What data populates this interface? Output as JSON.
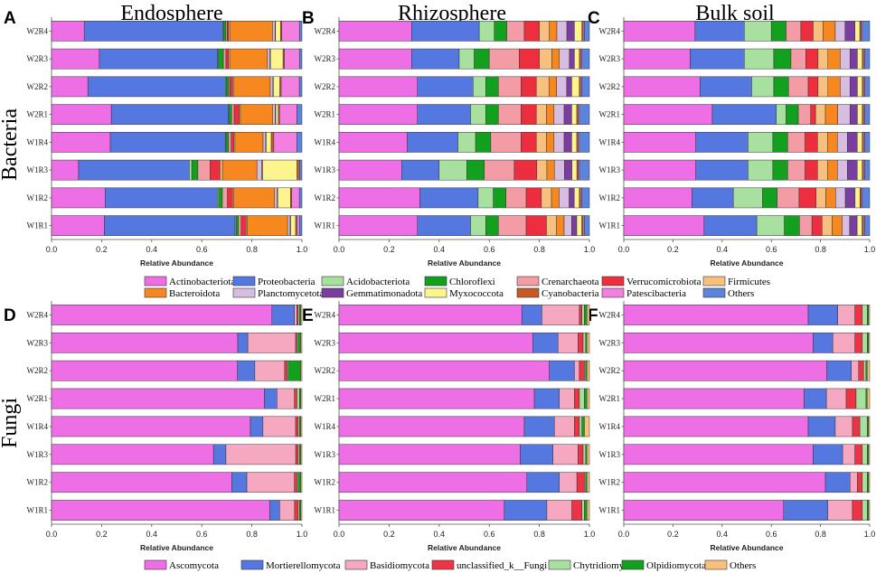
{
  "row_titles": {
    "bacteria": "Bacteria",
    "fungi": "Fungi"
  },
  "column_titles": [
    "Endosphere",
    "Rhizosphere",
    "Bulk soil"
  ],
  "xlabel": "Relative Abundance",
  "x_ticks": [
    "0.0",
    "0.2",
    "0.4",
    "0.6",
    "0.8",
    "1.0"
  ],
  "samples": [
    "W2R4",
    "W2R3",
    "W2R2",
    "W2R1",
    "W1R4",
    "W1R3",
    "W1R2",
    "W1R1"
  ],
  "bacteria_legend": [
    {
      "name": "Actinobacteriota",
      "color": "#EE6EE6"
    },
    {
      "name": "Proteobacteria",
      "color": "#5577E0"
    },
    {
      "name": "Acidobacteriota",
      "color": "#A8E0A0"
    },
    {
      "name": "Chloroflexi",
      "color": "#13A01F"
    },
    {
      "name": "Crenarchaeota",
      "color": "#F39CA6"
    },
    {
      "name": "Verrucomicrobiota",
      "color": "#EC2E3F"
    },
    {
      "name": "Firmicutes",
      "color": "#F7C07E"
    },
    {
      "name": "Bacteroidota",
      "color": "#F7881F"
    },
    {
      "name": "Planctomycetota",
      "color": "#D7BDE2"
    },
    {
      "name": "Gemmatimonadota",
      "color": "#7A3DA0"
    },
    {
      "name": "Myxococcota",
      "color": "#FEF48E"
    },
    {
      "name": "Cyanobacteria",
      "color": "#C55A25"
    },
    {
      "name": "Patescibacteria",
      "color": "#F380E0"
    },
    {
      "name": "Others",
      "color": "#5B85DD"
    }
  ],
  "fungi_legend": [
    {
      "name": "Ascomycota",
      "color": "#EE6EE6"
    },
    {
      "name": "Mortierellomycota",
      "color": "#5577E0"
    },
    {
      "name": "Basidiomycota",
      "color": "#F5A8C0"
    },
    {
      "name": "unclassified_k__Fungi",
      "color": "#EC3444"
    },
    {
      "name": "Chytridiomycota",
      "color": "#A8E0A0"
    },
    {
      "name": "Olpidiomycota",
      "color": "#13A01F"
    },
    {
      "name": "Others",
      "color": "#F7C07E"
    }
  ],
  "chart_data": [
    {
      "panel": "A",
      "type": "bar",
      "stacked": "horizontal",
      "title": "Endosphere",
      "row": "Bacteria",
      "xlabel": "Relative Abundance",
      "xlim": [
        0,
        1
      ],
      "categories": [
        "W2R4",
        "W2R3",
        "W2R2",
        "W2R1",
        "W1R4",
        "W1R3",
        "W1R2",
        "W1R1"
      ],
      "series": [
        {
          "name": "Actinobacteriota",
          "values": [
            0.13,
            0.19,
            0.14,
            0.24,
            0.23,
            0.11,
            0.21,
            0.21
          ]
        },
        {
          "name": "Proteobacteria",
          "values": [
            0.55,
            0.47,
            0.53,
            0.47,
            0.45,
            0.45,
            0.44,
            0.52
          ]
        },
        {
          "name": "Acidobacteriota",
          "values": [
            0.003,
            0.003,
            0.003,
            0.003,
            0.003,
            0.01,
            0.005,
            0.004
          ]
        },
        {
          "name": "Chloroflexi",
          "values": [
            0.01,
            0.02,
            0.01,
            0.01,
            0.01,
            0.025,
            0.015,
            0.01
          ]
        },
        {
          "name": "Crenarchaeota",
          "values": [
            0.005,
            0.01,
            0.005,
            0.01,
            0.01,
            0.05,
            0.02,
            0.01
          ]
        },
        {
          "name": "Verrucomicrobiota",
          "values": [
            0.005,
            0.01,
            0.01,
            0.02,
            0.01,
            0.04,
            0.02,
            0.02
          ]
        },
        {
          "name": "Firmicutes",
          "values": [
            0.005,
            0.005,
            0.005,
            0.005,
            0.005,
            0.01,
            0.005,
            0.005
          ]
        },
        {
          "name": "Bacteroidota",
          "values": [
            0.17,
            0.15,
            0.14,
            0.13,
            0.11,
            0.14,
            0.16,
            0.16
          ]
        },
        {
          "name": "Planctomycetota",
          "values": [
            0.01,
            0.01,
            0.01,
            0.01,
            0.01,
            0.02,
            0.01,
            0.01
          ]
        },
        {
          "name": "Gemmatimonadota",
          "values": [
            0.002,
            0.002,
            0.002,
            0.002,
            0.002,
            0.003,
            0.002,
            0.002
          ]
        },
        {
          "name": "Myxococcota",
          "values": [
            0.02,
            0.05,
            0.025,
            0.01,
            0.02,
            0.14,
            0.05,
            0.02
          ]
        },
        {
          "name": "Cyanobacteria",
          "values": [
            0.005,
            0.005,
            0.005,
            0.005,
            0.01,
            0.01,
            0.005,
            0.005
          ]
        },
        {
          "name": "Patescibacteria",
          "values": [
            0.07,
            0.06,
            0.07,
            0.07,
            0.09,
            0.0,
            0.03,
            0.01
          ]
        },
        {
          "name": "Others",
          "values": [
            0.01,
            0.01,
            0.01,
            0.02,
            0.02,
            0.01,
            0.01,
            0.01
          ]
        }
      ]
    },
    {
      "panel": "B",
      "type": "bar",
      "stacked": "horizontal",
      "title": "Rhizosphere",
      "row": "Bacteria",
      "xlabel": "Relative Abundance",
      "xlim": [
        0,
        1
      ],
      "categories": [
        "W2R4",
        "W2R3",
        "W2R2",
        "W2R1",
        "W1R4",
        "W1R3",
        "W1R2",
        "W1R1"
      ],
      "series": [
        {
          "name": "Actinobacteriota",
          "values": [
            0.29,
            0.29,
            0.31,
            0.31,
            0.27,
            0.25,
            0.32,
            0.31
          ]
        },
        {
          "name": "Proteobacteria",
          "values": [
            0.27,
            0.19,
            0.22,
            0.21,
            0.2,
            0.15,
            0.23,
            0.21
          ]
        },
        {
          "name": "Acidobacteriota",
          "values": [
            0.06,
            0.06,
            0.05,
            0.06,
            0.07,
            0.11,
            0.06,
            0.06
          ]
        },
        {
          "name": "Chloroflexi",
          "values": [
            0.05,
            0.06,
            0.05,
            0.05,
            0.06,
            0.07,
            0.05,
            0.05
          ]
        },
        {
          "name": "Crenarchaeota",
          "values": [
            0.07,
            0.12,
            0.09,
            0.09,
            0.12,
            0.12,
            0.08,
            0.11
          ]
        },
        {
          "name": "Verrucomicrobiota",
          "values": [
            0.06,
            0.08,
            0.06,
            0.06,
            0.06,
            0.09,
            0.06,
            0.08
          ]
        },
        {
          "name": "Firmicutes",
          "values": [
            0.04,
            0.05,
            0.05,
            0.04,
            0.04,
            0.04,
            0.04,
            0.04
          ]
        },
        {
          "name": "Bacteroidota",
          "values": [
            0.03,
            0.03,
            0.03,
            0.03,
            0.03,
            0.03,
            0.03,
            0.03
          ]
        },
        {
          "name": "Planctomycetota",
          "values": [
            0.04,
            0.04,
            0.04,
            0.04,
            0.04,
            0.04,
            0.04,
            0.03
          ]
        },
        {
          "name": "Gemmatimonadota",
          "values": [
            0.03,
            0.02,
            0.02,
            0.03,
            0.03,
            0.03,
            0.02,
            0.02
          ]
        },
        {
          "name": "Myxococcota",
          "values": [
            0.03,
            0.02,
            0.03,
            0.02,
            0.02,
            0.02,
            0.02,
            0.02
          ]
        },
        {
          "name": "Cyanobacteria",
          "values": [
            0.005,
            0.005,
            0.005,
            0.005,
            0.005,
            0.005,
            0.005,
            0.005
          ]
        },
        {
          "name": "Patescibacteria",
          "values": [
            0.005,
            0.005,
            0.005,
            0.005,
            0.005,
            0.005,
            0.005,
            0.005
          ]
        },
        {
          "name": "Others",
          "values": [
            0.02,
            0.03,
            0.03,
            0.04,
            0.04,
            0.04,
            0.03,
            0.02
          ]
        }
      ]
    },
    {
      "panel": "C",
      "type": "bar",
      "stacked": "horizontal",
      "title": "Bulk soil",
      "row": "Bacteria",
      "xlabel": "Relative Abundance",
      "xlim": [
        0,
        1
      ],
      "categories": [
        "W2R4",
        "W2R3",
        "W2R2",
        "W2R1",
        "W1R4",
        "W1R3",
        "W1R2",
        "W1R1"
      ],
      "series": [
        {
          "name": "Actinobacteriota",
          "values": [
            0.29,
            0.27,
            0.31,
            0.36,
            0.29,
            0.29,
            0.28,
            0.32
          ]
        },
        {
          "name": "Proteobacteria",
          "values": [
            0.2,
            0.22,
            0.21,
            0.26,
            0.21,
            0.21,
            0.17,
            0.21
          ]
        },
        {
          "name": "Acidobacteriota",
          "values": [
            0.11,
            0.12,
            0.09,
            0.04,
            0.1,
            0.1,
            0.12,
            0.11
          ]
        },
        {
          "name": "Chloroflexi",
          "values": [
            0.06,
            0.07,
            0.06,
            0.05,
            0.06,
            0.06,
            0.06,
            0.06
          ]
        },
        {
          "name": "Crenarchaeota",
          "values": [
            0.06,
            0.06,
            0.08,
            0.05,
            0.07,
            0.07,
            0.09,
            0.05
          ]
        },
        {
          "name": "Verrucomicrobiota",
          "values": [
            0.05,
            0.05,
            0.04,
            0.02,
            0.05,
            0.05,
            0.07,
            0.04
          ]
        },
        {
          "name": "Firmicutes",
          "values": [
            0.04,
            0.04,
            0.04,
            0.04,
            0.04,
            0.04,
            0.04,
            0.04
          ]
        },
        {
          "name": "Bacteroidota",
          "values": [
            0.05,
            0.05,
            0.05,
            0.05,
            0.04,
            0.04,
            0.04,
            0.04
          ]
        },
        {
          "name": "Planctomycetota",
          "values": [
            0.04,
            0.04,
            0.04,
            0.05,
            0.04,
            0.04,
            0.04,
            0.03
          ]
        },
        {
          "name": "Gemmatimonadota",
          "values": [
            0.04,
            0.03,
            0.03,
            0.03,
            0.04,
            0.04,
            0.04,
            0.03
          ]
        },
        {
          "name": "Myxococcota",
          "values": [
            0.02,
            0.02,
            0.02,
            0.02,
            0.02,
            0.02,
            0.02,
            0.02
          ]
        },
        {
          "name": "Cyanobacteria",
          "values": [
            0.005,
            0.005,
            0.005,
            0.005,
            0.005,
            0.005,
            0.005,
            0.005
          ]
        },
        {
          "name": "Patescibacteria",
          "values": [
            0.005,
            0.005,
            0.005,
            0.005,
            0.005,
            0.005,
            0.005,
            0.005
          ]
        },
        {
          "name": "Others",
          "values": [
            0.03,
            0.02,
            0.02,
            0.02,
            0.02,
            0.02,
            0.03,
            0.02
          ]
        }
      ]
    },
    {
      "panel": "D",
      "type": "bar",
      "stacked": "horizontal",
      "title": "Endosphere",
      "row": "Fungi",
      "xlabel": "Relative Abundance",
      "xlim": [
        0,
        1
      ],
      "categories": [
        "W2R4",
        "W2R3",
        "W2R2",
        "W2R1",
        "W1R4",
        "W1R3",
        "W1R2",
        "W1R1"
      ],
      "series": [
        {
          "name": "Ascomycota",
          "values": [
            0.88,
            0.74,
            0.75,
            0.85,
            0.79,
            0.65,
            0.72,
            0.88
          ]
        },
        {
          "name": "Mortierellomycota",
          "values": [
            0.09,
            0.04,
            0.07,
            0.05,
            0.05,
            0.05,
            0.06,
            0.04
          ]
        },
        {
          "name": "Basidiomycota",
          "values": [
            0.01,
            0.19,
            0.12,
            0.07,
            0.13,
            0.28,
            0.19,
            0.06
          ]
        },
        {
          "name": "unclassified_k__Fungi",
          "values": [
            0.005,
            0.005,
            0.01,
            0.01,
            0.01,
            0.01,
            0.01,
            0.015
          ]
        },
        {
          "name": "Chytridiomycota",
          "values": [
            0.005,
            0.005,
            0.005,
            0.01,
            0.005,
            0.005,
            0.005,
            0.005
          ]
        },
        {
          "name": "Olpidiomycota",
          "values": [
            0.005,
            0.01,
            0.05,
            0.005,
            0.005,
            0.005,
            0.01,
            0.005
          ]
        },
        {
          "name": "Others",
          "values": [
            0.005,
            0.005,
            0.005,
            0.005,
            0.005,
            0.005,
            0.005,
            0.005
          ]
        }
      ]
    },
    {
      "panel": "E",
      "type": "bar",
      "stacked": "horizontal",
      "title": "Rhizosphere",
      "row": "Fungi",
      "xlabel": "Relative Abundance",
      "xlim": [
        0,
        1
      ],
      "categories": [
        "W2R4",
        "W2R3",
        "W2R2",
        "W2R1",
        "W1R4",
        "W1R3",
        "W1R2",
        "W1R1"
      ],
      "series": [
        {
          "name": "Ascomycota",
          "values": [
            0.73,
            0.77,
            0.84,
            0.78,
            0.74,
            0.72,
            0.75,
            0.66
          ]
        },
        {
          "name": "Mortierellomycota",
          "values": [
            0.08,
            0.1,
            0.1,
            0.1,
            0.12,
            0.13,
            0.13,
            0.17
          ]
        },
        {
          "name": "Basidiomycota",
          "values": [
            0.15,
            0.08,
            0.02,
            0.06,
            0.08,
            0.1,
            0.07,
            0.1
          ]
        },
        {
          "name": "unclassified_k__Fungi",
          "values": [
            0.01,
            0.02,
            0.02,
            0.02,
            0.02,
            0.02,
            0.03,
            0.04
          ]
        },
        {
          "name": "Chytridiomycota",
          "values": [
            0.01,
            0.01,
            0.005,
            0.02,
            0.01,
            0.01,
            0.005,
            0.01
          ]
        },
        {
          "name": "Olpidiomycota",
          "values": [
            0.01,
            0.005,
            0.005,
            0.01,
            0.01,
            0.005,
            0.005,
            0.01
          ]
        },
        {
          "name": "Others",
          "values": [
            0.01,
            0.01,
            0.01,
            0.01,
            0.02,
            0.01,
            0.01,
            0.01
          ]
        }
      ]
    },
    {
      "panel": "F",
      "type": "bar",
      "stacked": "horizontal",
      "title": "Bulk soil",
      "row": "Fungi",
      "xlabel": "Relative Abundance",
      "xlim": [
        0,
        1
      ],
      "categories": [
        "W2R4",
        "W2R3",
        "W2R2",
        "W2R1",
        "W1R4",
        "W1R3",
        "W1R2",
        "W1R1"
      ],
      "series": [
        {
          "name": "Ascomycota",
          "values": [
            0.75,
            0.77,
            0.83,
            0.73,
            0.75,
            0.77,
            0.82,
            0.65
          ]
        },
        {
          "name": "Mortierellomycota",
          "values": [
            0.12,
            0.08,
            0.1,
            0.09,
            0.11,
            0.12,
            0.1,
            0.18
          ]
        },
        {
          "name": "Basidiomycota",
          "values": [
            0.07,
            0.09,
            0.03,
            0.08,
            0.07,
            0.05,
            0.03,
            0.1
          ]
        },
        {
          "name": "unclassified_k__Fungi",
          "values": [
            0.03,
            0.03,
            0.02,
            0.04,
            0.03,
            0.03,
            0.02,
            0.04
          ]
        },
        {
          "name": "Chytridiomycota",
          "values": [
            0.02,
            0.02,
            0.01,
            0.04,
            0.03,
            0.02,
            0.02,
            0.02
          ]
        },
        {
          "name": "Olpidiomycota",
          "values": [
            0.005,
            0.005,
            0.005,
            0.005,
            0.005,
            0.005,
            0.005,
            0.005
          ]
        },
        {
          "name": "Others",
          "values": [
            0.005,
            0.005,
            0.01,
            0.01,
            0.005,
            0.005,
            0.005,
            0.005
          ]
        }
      ]
    }
  ]
}
